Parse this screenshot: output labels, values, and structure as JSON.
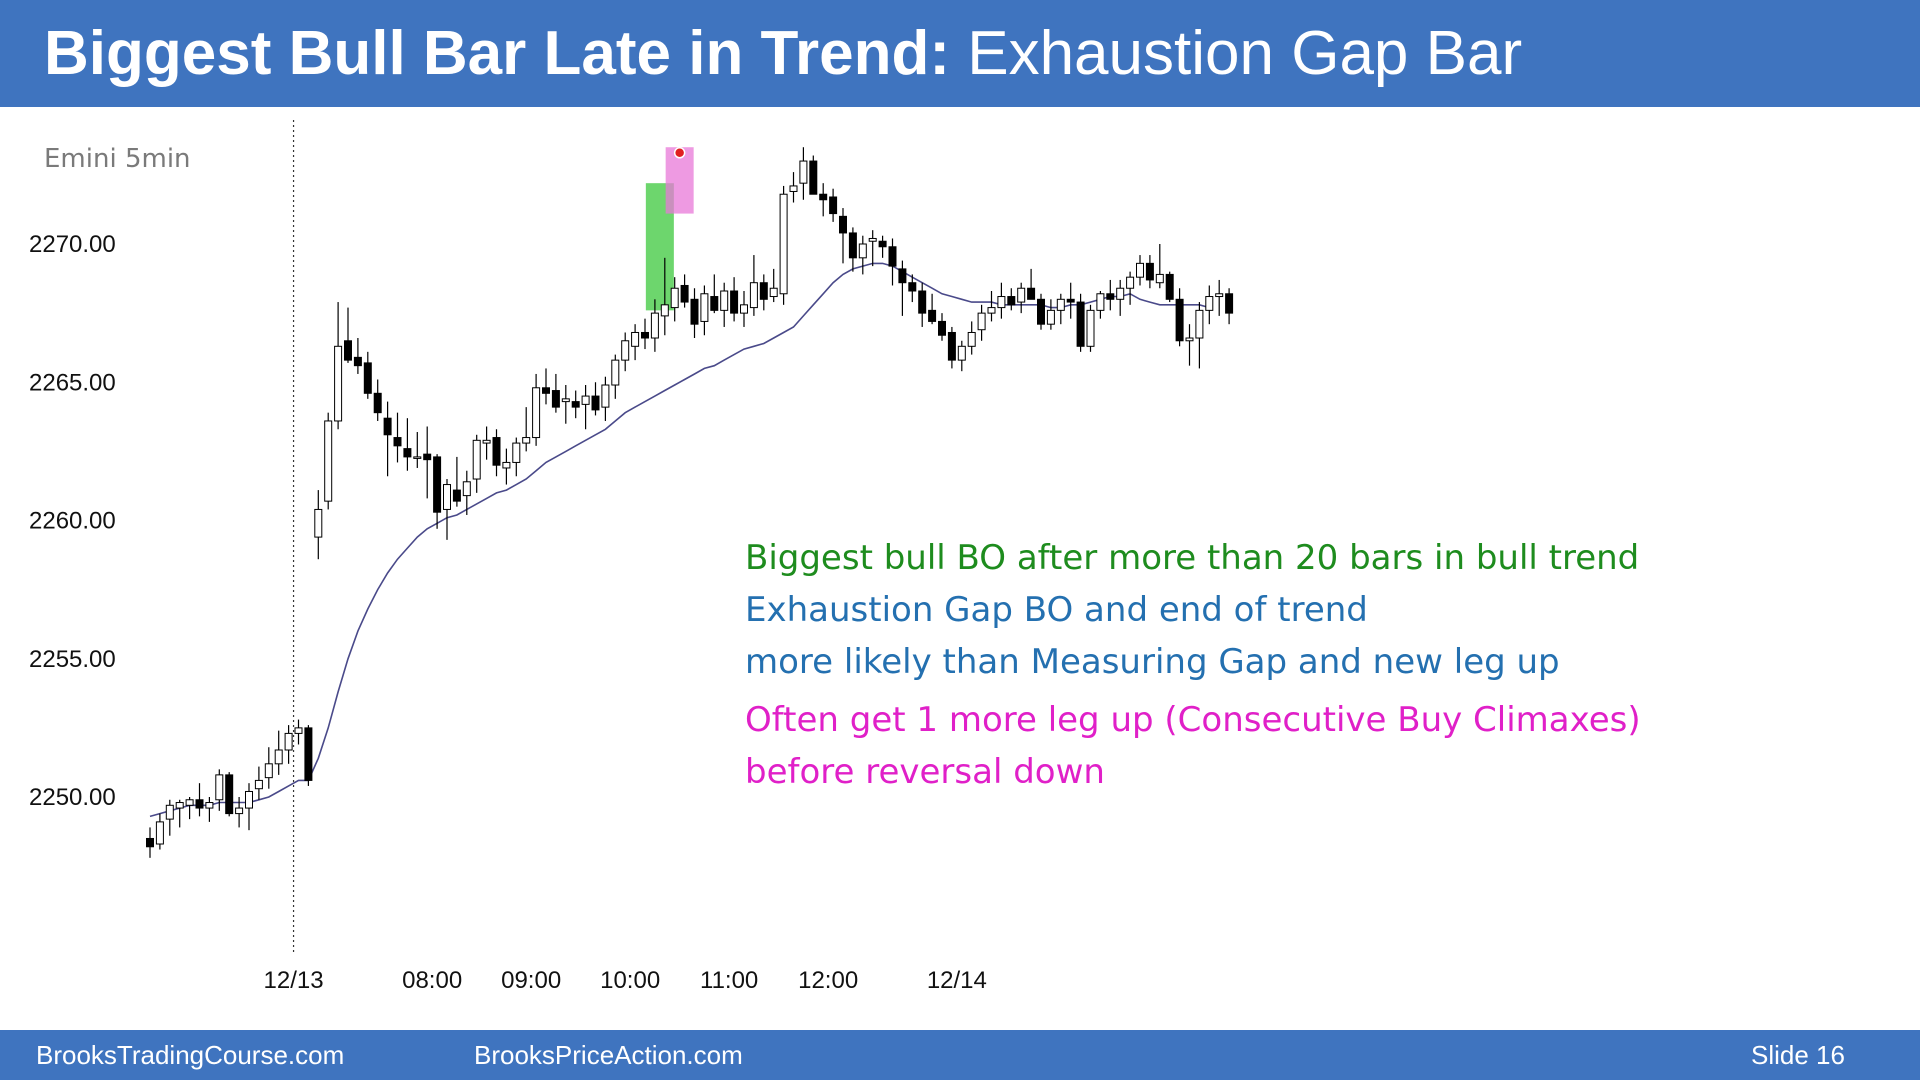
{
  "slide": {
    "title_bold": "Biggest Bull Bar Late in Trend:",
    "title_normal": " Exhaustion Gap Bar",
    "footer_left": "BrooksTradingCourse.com",
    "footer_mid": "BrooksPriceAction.com",
    "footer_right": "Slide  16"
  },
  "annotations": {
    "line1": "Biggest bull BO after more than 20 bars in bull trend",
    "line2": "Exhaustion Gap BO and end of trend",
    "line3": "more likely than Measuring Gap and new leg up",
    "line4": "Often get 1 more leg up (Consecutive Buy Climaxes)",
    "line5": "before reversal down",
    "colors": {
      "green": "#1e8c1e",
      "blue": "#2470b0",
      "magenta": "#e020c8"
    }
  },
  "chart_data": {
    "type": "candlestick",
    "symbol": "Emini 5min",
    "ylim": [
      2245.5,
      2277.5
    ],
    "yticks": [
      2250,
      2255,
      2260,
      2265,
      2270
    ],
    "ytick_labels": [
      "2250.00",
      "2255.00",
      "2260.00",
      "2265.00",
      "2270.00"
    ],
    "xtick_labels": [
      {
        "label": "12/13",
        "bar": 14.5
      },
      {
        "label": "08:00",
        "bar": 28.5
      },
      {
        "label": "09:00",
        "bar": 38.5
      },
      {
        "label": "10:00",
        "bar": 48.5
      },
      {
        "label": "11:00",
        "bar": 58.5
      },
      {
        "label": "12:00",
        "bar": 68.5
      },
      {
        "label": "12/14",
        "bar": 81.5
      }
    ],
    "session_break_bar": 14.5,
    "highlights": [
      {
        "bar": 51.5,
        "color": "#3cc83c",
        "low": 2267.6,
        "high": 2272.2
      },
      {
        "bar": 53.5,
        "color": "#e878d8",
        "low": 2271.1,
        "high": 2273.5
      }
    ],
    "marker": {
      "bar": 53.5,
      "price": 2273.3,
      "color": "#e02020"
    },
    "bars": [
      [
        2248.5,
        2248.9,
        2247.8,
        2248.2
      ],
      [
        2248.3,
        2249.4,
        2248.1,
        2249.1
      ],
      [
        2249.2,
        2249.9,
        2248.6,
        2249.7
      ],
      [
        2249.6,
        2249.9,
        2248.9,
        2249.8
      ],
      [
        2249.7,
        2250.0,
        2249.2,
        2249.9
      ],
      [
        2249.9,
        2250.5,
        2249.3,
        2249.6
      ],
      [
        2249.6,
        2250.0,
        2249.1,
        2249.8
      ],
      [
        2249.9,
        2251.0,
        2249.5,
        2250.8
      ],
      [
        2250.8,
        2250.9,
        2249.3,
        2249.4
      ],
      [
        2249.4,
        2250.0,
        2248.9,
        2249.6
      ],
      [
        2249.6,
        2250.5,
        2248.8,
        2250.2
      ],
      [
        2250.3,
        2251.1,
        2249.9,
        2250.6
      ],
      [
        2250.7,
        2251.8,
        2250.3,
        2251.2
      ],
      [
        2251.2,
        2252.4,
        2250.8,
        2251.7
      ],
      [
        2251.7,
        2252.6,
        2251.2,
        2252.3
      ],
      [
        2252.3,
        2252.8,
        2251.9,
        2252.5
      ],
      [
        2252.5,
        2252.6,
        2250.4,
        2250.6
      ],
      [
        2259.4,
        2261.1,
        2258.6,
        2260.4
      ],
      [
        2260.7,
        2263.9,
        2260.4,
        2263.6
      ],
      [
        2263.6,
        2267.9,
        2263.3,
        2266.3
      ],
      [
        2266.5,
        2267.7,
        2265.7,
        2265.8
      ],
      [
        2265.9,
        2266.6,
        2265.3,
        2265.6
      ],
      [
        2265.7,
        2266.1,
        2264.4,
        2264.6
      ],
      [
        2264.6,
        2265.1,
        2263.6,
        2263.9
      ],
      [
        2263.7,
        2264.3,
        2261.6,
        2263.1
      ],
      [
        2263.0,
        2263.9,
        2262.1,
        2262.7
      ],
      [
        2262.6,
        2263.7,
        2261.8,
        2262.3
      ],
      [
        2262.3,
        2263.2,
        2261.9,
        2262.3
      ],
      [
        2262.4,
        2263.4,
        2260.8,
        2262.2
      ],
      [
        2262.3,
        2262.4,
        2259.7,
        2260.3
      ],
      [
        2260.4,
        2261.5,
        2259.3,
        2261.3
      ],
      [
        2261.1,
        2262.3,
        2260.5,
        2260.7
      ],
      [
        2260.9,
        2261.8,
        2260.2,
        2261.4
      ],
      [
        2261.5,
        2263.1,
        2261.0,
        2262.9
      ],
      [
        2262.8,
        2263.4,
        2262.2,
        2262.9
      ],
      [
        2263.0,
        2263.3,
        2261.6,
        2262.0
      ],
      [
        2261.9,
        2262.6,
        2261.3,
        2262.1
      ],
      [
        2262.1,
        2263.0,
        2261.6,
        2262.8
      ],
      [
        2262.8,
        2264.1,
        2262.5,
        2263.0
      ],
      [
        2263.0,
        2265.3,
        2262.7,
        2264.8
      ],
      [
        2264.8,
        2265.5,
        2264.2,
        2264.6
      ],
      [
        2264.7,
        2265.3,
        2263.9,
        2264.1
      ],
      [
        2264.3,
        2264.9,
        2263.5,
        2264.4
      ],
      [
        2264.3,
        2264.7,
        2263.7,
        2264.1
      ],
      [
        2264.2,
        2264.9,
        2263.3,
        2264.5
      ],
      [
        2264.5,
        2265.0,
        2263.8,
        2264.0
      ],
      [
        2264.1,
        2265.2,
        2263.6,
        2264.9
      ],
      [
        2264.9,
        2266.0,
        2264.4,
        2265.8
      ],
      [
        2265.8,
        2266.8,
        2265.4,
        2266.5
      ],
      [
        2266.3,
        2267.1,
        2265.8,
        2266.8
      ],
      [
        2266.8,
        2267.3,
        2266.2,
        2266.6
      ],
      [
        2266.6,
        2268.0,
        2266.1,
        2267.5
      ]
    ],
    "bars_cont": [
      [
        2267.4,
        2269.5,
        2266.7,
        2267.8
      ],
      [
        2267.7,
        2268.8,
        2267.2,
        2268.4
      ],
      [
        2268.5,
        2268.9,
        2267.7,
        2267.9
      ],
      [
        2268.0,
        2268.4,
        2266.6,
        2267.1
      ],
      [
        2267.2,
        2268.5,
        2266.7,
        2268.2
      ],
      [
        2268.1,
        2268.9,
        2267.5,
        2267.6
      ],
      [
        2267.6,
        2268.6,
        2267.0,
        2268.3
      ],
      [
        2268.3,
        2268.8,
        2267.2,
        2267.5
      ],
      [
        2267.5,
        2268.3,
        2267.0,
        2267.8
      ],
      [
        2267.7,
        2269.6,
        2267.4,
        2268.6
      ],
      [
        2268.6,
        2268.9,
        2267.6,
        2268.0
      ],
      [
        2268.1,
        2269.1,
        2267.9,
        2268.4
      ],
      [
        2268.2,
        2272.1,
        2267.8,
        2271.8
      ],
      [
        2271.9,
        2272.6,
        2271.5,
        2272.1
      ],
      [
        2272.2,
        2273.5,
        2271.6,
        2273.0
      ],
      [
        2273.0,
        2273.2,
        2271.8,
        2271.8
      ],
      [
        2271.8,
        2272.2,
        2271.0,
        2271.6
      ],
      [
        2271.7,
        2272.0,
        2270.8,
        2271.1
      ],
      [
        2271.0,
        2271.3,
        2269.3,
        2270.4
      ],
      [
        2270.4,
        2270.6,
        2269.0,
        2269.5
      ],
      [
        2269.5,
        2270.3,
        2268.9,
        2270.0
      ],
      [
        2270.1,
        2270.5,
        2269.2,
        2270.2
      ],
      [
        2270.1,
        2270.3,
        2269.5,
        2269.9
      ],
      [
        2269.9,
        2270.2,
        2268.5,
        2269.2
      ],
      [
        2269.1,
        2269.4,
        2267.4,
        2268.6
      ],
      [
        2268.6,
        2268.9,
        2267.9,
        2268.3
      ],
      [
        2268.3,
        2268.6,
        2267.0,
        2267.5
      ],
      [
        2267.6,
        2268.2,
        2267.1,
        2267.2
      ],
      [
        2267.2,
        2267.5,
        2266.5,
        2266.7
      ],
      [
        2266.8,
        2267.0,
        2265.5,
        2265.8
      ],
      [
        2265.8,
        2266.5,
        2265.4,
        2266.3
      ],
      [
        2266.3,
        2267.2,
        2266.0,
        2266.8
      ],
      [
        2266.9,
        2267.8,
        2266.5,
        2267.5
      ],
      [
        2267.5,
        2268.3,
        2267.2,
        2267.7
      ],
      [
        2267.7,
        2268.6,
        2267.3,
        2268.1
      ],
      [
        2268.1,
        2268.4,
        2267.6,
        2267.8
      ],
      [
        2267.9,
        2268.6,
        2267.5,
        2268.4
      ],
      [
        2268.4,
        2269.1,
        2268.1,
        2268.0
      ],
      [
        2268.0,
        2268.2,
        2266.9,
        2267.1
      ],
      [
        2267.1,
        2268.0,
        2266.9,
        2267.6
      ],
      [
        2267.6,
        2268.2,
        2267.1,
        2268.0
      ],
      [
        2268.0,
        2268.6,
        2267.3,
        2267.9
      ],
      [
        2267.9,
        2268.2,
        2266.1,
        2266.3
      ],
      [
        2266.3,
        2267.8,
        2266.1,
        2267.6
      ],
      [
        2267.6,
        2268.3,
        2267.3,
        2268.2
      ],
      [
        2268.2,
        2268.7,
        2267.6,
        2268.0
      ],
      [
        2268.0,
        2268.7,
        2267.4,
        2268.4
      ],
      [
        2268.4,
        2269.0,
        2267.8,
        2268.8
      ],
      [
        2268.8,
        2269.6,
        2268.5,
        2269.3
      ],
      [
        2269.3,
        2269.6,
        2268.4,
        2268.7
      ],
      [
        2268.6,
        2270.0,
        2268.4,
        2268.9
      ],
      [
        2268.9,
        2269.0,
        2267.9,
        2268.0
      ],
      [
        2268.0,
        2268.4,
        2266.3,
        2266.5
      ],
      [
        2266.5,
        2267.1,
        2265.6,
        2266.6
      ],
      [
        2266.6,
        2267.9,
        2265.5,
        2267.6
      ],
      [
        2267.6,
        2268.5,
        2267.1,
        2268.1
      ],
      [
        2268.1,
        2268.7,
        2267.4,
        2268.2
      ],
      [
        2268.2,
        2268.4,
        2267.1,
        2267.5
      ]
    ],
    "ema": [
      2249.3,
      2249.4,
      2249.5,
      2249.6,
      2249.7,
      2249.7,
      2249.7,
      2249.8,
      2249.8,
      2249.8,
      2249.8,
      2249.9,
      2250.0,
      2250.2,
      2250.4,
      2250.6,
      2250.6,
      2251.4,
      2252.5,
      2253.8,
      2255.0,
      2256.0,
      2256.8,
      2257.5,
      2258.1,
      2258.6,
      2259.0,
      2259.4,
      2259.7,
      2259.9,
      2260.1,
      2260.2,
      2260.4,
      2260.6,
      2260.8,
      2261.0,
      2261.1,
      2261.3,
      2261.5,
      2261.8,
      2262.1,
      2262.3,
      2262.5,
      2262.7,
      2262.9,
      2263.1,
      2263.3,
      2263.6,
      2263.9,
      2264.1,
      2264.3,
      2264.5,
      2264.7,
      2264.9,
      2265.1,
      2265.3,
      2265.5,
      2265.6,
      2265.8,
      2266.0,
      2266.2,
      2266.3,
      2266.4,
      2266.6,
      2266.8,
      2267.0,
      2267.4,
      2267.8,
      2268.2,
      2268.6,
      2268.9,
      2269.1,
      2269.2,
      2269.3,
      2269.3,
      2269.2,
      2269.0,
      2268.8,
      2268.6,
      2268.4,
      2268.2,
      2268.1,
      2268.0,
      2267.9,
      2267.9,
      2267.9,
      2267.8,
      2267.8,
      2267.8,
      2267.8,
      2267.8,
      2267.7,
      2267.7,
      2267.8,
      2267.8,
      2267.9,
      2268.0,
      2268.1,
      2268.1,
      2268.2,
      2268.0,
      2267.9,
      2267.8,
      2267.8,
      2267.8,
      2267.8,
      2267.8,
      2267.7
    ],
    "legend": "none",
    "grid": false
  }
}
